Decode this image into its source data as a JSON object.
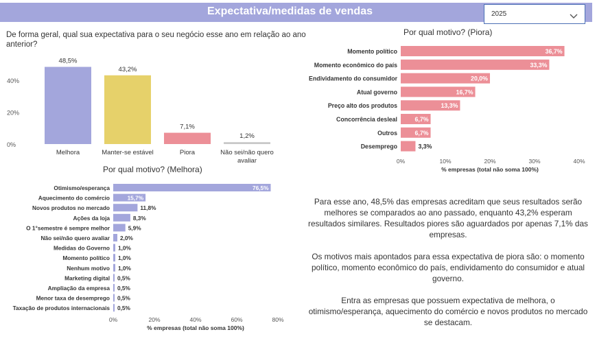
{
  "header": {
    "title": "Expectativa/medidas de vendas",
    "year_filter": "2025"
  },
  "question": "De forma geral, qual sua expectativa para o seu negócio esse ano em relação ao ano anterior?",
  "colors": {
    "header": "#a3a6dc",
    "melhora": "#a3a6dc",
    "manter": "#e6d16a",
    "piora": "#ec8f97",
    "nao_sei": "#c8c8c8",
    "bar_melhora": "#a3a6dc",
    "bar_piora": "#ec8f97"
  },
  "chart_data": [
    {
      "type": "bar",
      "categories": [
        "Melhora",
        "Manter-se estável",
        "Piora",
        "Não sei/não quero avaliar"
      ],
      "values": [
        48.5,
        43.2,
        7.1,
        1.2
      ],
      "value_labels": [
        "48,5%",
        "43,2%",
        "7,1%",
        "1,2%"
      ],
      "y_ticks": [
        "0%",
        "20%",
        "40%"
      ],
      "ylim": [
        0,
        50
      ]
    },
    {
      "type": "bar",
      "orientation": "horizontal",
      "title": "Por qual motivo? (Piora)",
      "categories": [
        "Momento político",
        "Momento econômico do país",
        "Endividamento do consumidor",
        "Atual governo",
        "Preço alto dos produtos",
        "Concorrência desleal",
        "Outros",
        "Desemprego"
      ],
      "values": [
        36.7,
        33.3,
        20.0,
        16.7,
        13.3,
        6.7,
        6.7,
        3.3
      ],
      "value_labels": [
        "36,7%",
        "33,3%",
        "20,0%",
        "16,7%",
        "13,3%",
        "6,7%",
        "6,7%",
        "3,3%"
      ],
      "x_ticks": [
        "0%",
        "10%",
        "20%",
        "30%",
        "40%"
      ],
      "xlim": [
        0,
        40
      ],
      "xlabel": "% empresas (total não soma 100%)"
    },
    {
      "type": "bar",
      "orientation": "horizontal",
      "title": "Por qual motivo? (Melhora)",
      "categories": [
        "Otimismo/esperança",
        "Aquecimento do comércio",
        "Novos produtos no mercado",
        "Ações da loja",
        "O 1°semestre é sempre melhor",
        "Não sei/não quero avaliar",
        "Medidas do Governo",
        "Momento político",
        "Nenhum motivo",
        "Marketing digital",
        "Ampliação da empresa",
        "Menor taxa de desemprego",
        "Taxação de produtos internacionais"
      ],
      "values": [
        76.5,
        15.7,
        11.8,
        8.3,
        5.9,
        2.0,
        1.0,
        1.0,
        1.0,
        0.5,
        0.5,
        0.5,
        0.5
      ],
      "value_labels": [
        "76,5%",
        "15,7%",
        "11,8%",
        "8,3%",
        "5,9%",
        "2,0%",
        "1,0%",
        "1,0%",
        "1,0%",
        "0,5%",
        "0,5%",
        "0,5%",
        "0,5%"
      ],
      "x_ticks": [
        "0%",
        "20%",
        "40%",
        "60%",
        "80%"
      ],
      "xlim": [
        0,
        80
      ],
      "xlabel": "% empresas (total não soma 100%)"
    }
  ],
  "summary": [
    "Para esse ano, 48,5% das empresas acreditam que seus resultados serão melhores se comparados ao ano passado, enquanto 43,2% esperam resultados similares. Resultados piores são aguardados por apenas 7,1% das empresas.",
    "Os motivos mais apontados para essa expectativa de piora são: o momento político, momento econômico do país, endividamento do consumidor e atual governo.",
    "Entra as empresas que possuem expectativa de melhora, o otimismo/esperança, aquecimento do comércio e novos produtos no mercado se destacam."
  ]
}
